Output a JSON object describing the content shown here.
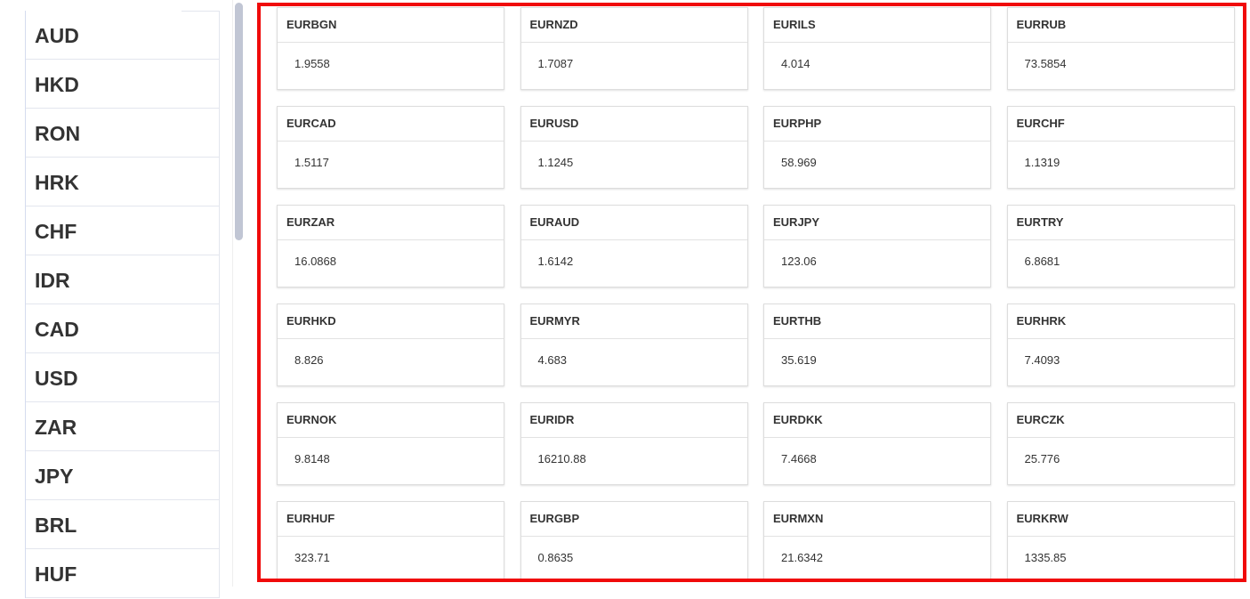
{
  "sidebar": {
    "items": [
      "AUD",
      "HKD",
      "RON",
      "HRK",
      "CHF",
      "IDR",
      "CAD",
      "USD",
      "ZAR",
      "JPY",
      "BRL",
      "HUF"
    ]
  },
  "rates": [
    {
      "pair": "EURBGN",
      "value": "1.9558"
    },
    {
      "pair": "EURNZD",
      "value": "1.7087"
    },
    {
      "pair": "EURILS",
      "value": "4.014"
    },
    {
      "pair": "EURRUB",
      "value": "73.5854"
    },
    {
      "pair": "EURCAD",
      "value": "1.5117"
    },
    {
      "pair": "EURUSD",
      "value": "1.1245"
    },
    {
      "pair": "EURPHP",
      "value": "58.969"
    },
    {
      "pair": "EURCHF",
      "value": "1.1319"
    },
    {
      "pair": "EURZAR",
      "value": "16.0868"
    },
    {
      "pair": "EURAUD",
      "value": "1.6142"
    },
    {
      "pair": "EURJPY",
      "value": "123.06"
    },
    {
      "pair": "EURTRY",
      "value": "6.8681"
    },
    {
      "pair": "EURHKD",
      "value": "8.826"
    },
    {
      "pair": "EURMYR",
      "value": "4.683"
    },
    {
      "pair": "EURTHB",
      "value": "35.619"
    },
    {
      "pair": "EURHRK",
      "value": "7.4093"
    },
    {
      "pair": "EURNOK",
      "value": "9.8148"
    },
    {
      "pair": "EURIDR",
      "value": "16210.88"
    },
    {
      "pair": "EURDKK",
      "value": "7.4668"
    },
    {
      "pair": "EURCZK",
      "value": "25.776"
    },
    {
      "pair": "EURHUF",
      "value": "323.71"
    },
    {
      "pair": "EURGBP",
      "value": "0.8635"
    },
    {
      "pair": "EURMXN",
      "value": "21.6342"
    },
    {
      "pair": "EURKRW",
      "value": "1335.85"
    }
  ],
  "colors": {
    "highlight": "#f00a0a"
  }
}
